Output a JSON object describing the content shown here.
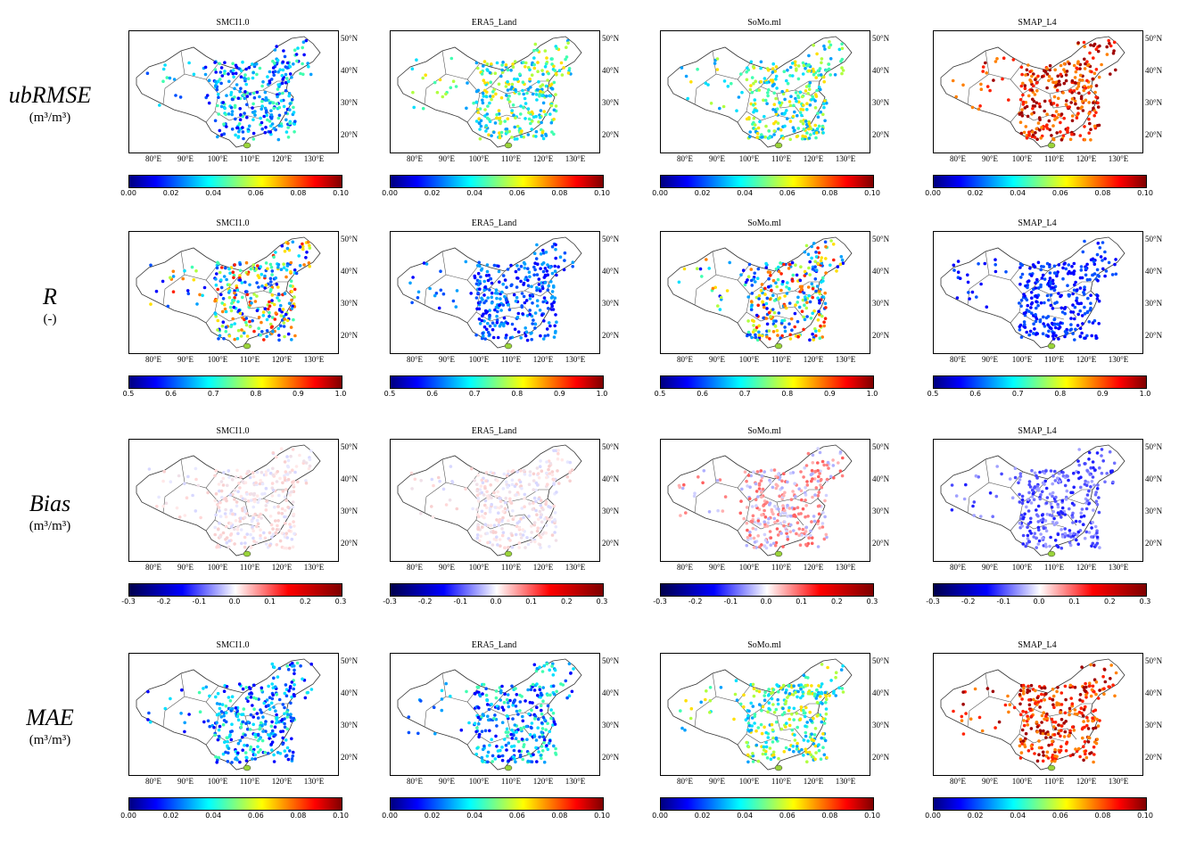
{
  "rows": [
    {
      "metric": "ubRMSE",
      "unit": "(m³/m³)",
      "ticks": [
        "0.00",
        "0.02",
        "0.04",
        "0.06",
        "0.08",
        "0.10"
      ],
      "colormap": "jet"
    },
    {
      "metric": "R",
      "unit": "(-)",
      "ticks": [
        "0.5",
        "0.6",
        "0.7",
        "0.8",
        "0.9",
        "1.0"
      ],
      "colormap": "jet"
    },
    {
      "metric": "Bias",
      "unit": "(m³/m³)",
      "ticks": [
        "-0.3",
        "-0.2",
        "-0.1",
        "0.0",
        "0.1",
        "0.2",
        "0.3"
      ],
      "colormap": "seismic"
    },
    {
      "metric": "MAE",
      "unit": "(m³/m³)",
      "ticks": [
        "0.00",
        "0.02",
        "0.04",
        "0.06",
        "0.08",
        "0.10"
      ],
      "colormap": "jet"
    }
  ],
  "products": [
    "SMCI1.0",
    "ERA5_Land",
    "SoMo.ml",
    "SMAP_L4"
  ],
  "lat_labels": [
    "50°N",
    "40°N",
    "30°N",
    "20°N"
  ],
  "lon_labels": [
    "80°E",
    "90°E",
    "100°E",
    "110°E",
    "120°E",
    "130°E"
  ],
  "colors": {
    "jet": [
      "#00007f",
      "#0000ff",
      "#007fff",
      "#00ffff",
      "#7fff7f",
      "#ffff00",
      "#ff7f00",
      "#ff0000",
      "#7f0000"
    ],
    "seismic": [
      "#00004c",
      "#0000ff",
      "#ffffff",
      "#ff0000",
      "#7f0000"
    ]
  },
  "dot_tone": [
    [
      "low-mid",
      "mid",
      "mid",
      "high"
    ],
    [
      "mixed",
      "high",
      "mixed",
      "very-high"
    ],
    [
      "near-zero",
      "near-zero",
      "slight-pos",
      "negative"
    ],
    [
      "low-mid",
      "low-mid",
      "mid",
      "high"
    ]
  ]
}
